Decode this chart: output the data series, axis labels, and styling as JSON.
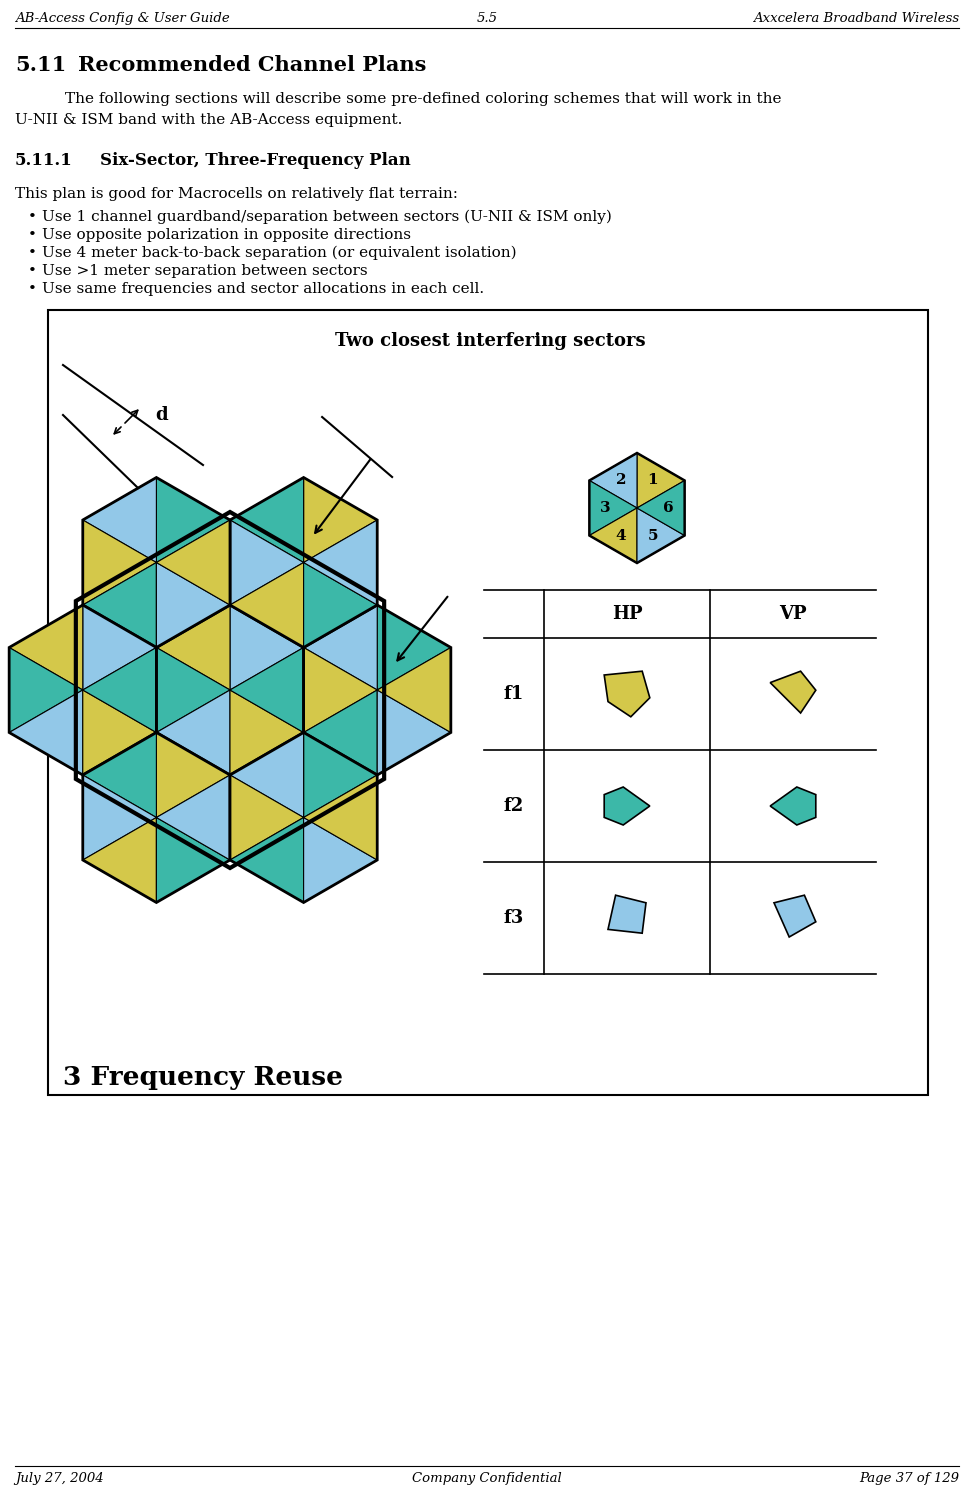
{
  "header_left": "AB-Access Config & User Guide",
  "header_center": "5.5",
  "header_right": "Axxcelera Broadband Wireless",
  "footer_left": "July 27, 2004",
  "footer_center": "Company Confidential",
  "footer_right": "Page 37 of 129",
  "section_title_num": "5.11",
  "section_title_text": "Recommended Channel Plans",
  "subsection": "5.11.1",
  "subsection_text": "Six-Sector, Three-Frequency Plan",
  "intro_text1": "The following sections will describe some pre-defined coloring schemes that will work in the",
  "intro_text2": "U-NII & ISM band with the AB-Access equipment.",
  "plan_intro": "This plan is good for Macrocells on relatively flat terrain:",
  "bullets": [
    "Use 1 channel guardband/separation between sectors (U-NII & ISM only)",
    "Use opposite polarization in opposite directions",
    "Use 4 meter back-to-back separation (or equivalent isolation)",
    "Use >1 meter separation between sectors",
    "Use same frequencies and sector allocations in each cell."
  ],
  "diagram_title": "Two closest interfering sectors",
  "freq_reuse_label": "3 Frequency Reuse",
  "freq_labels": [
    "f1",
    "f2",
    "f3"
  ],
  "pol_labels": [
    "HP",
    "VP"
  ],
  "color_yellow": "#D4C84A",
  "color_cyan": "#3CB8A8",
  "color_blue": "#92C8E8",
  "bg_color": "#FFFFFF"
}
